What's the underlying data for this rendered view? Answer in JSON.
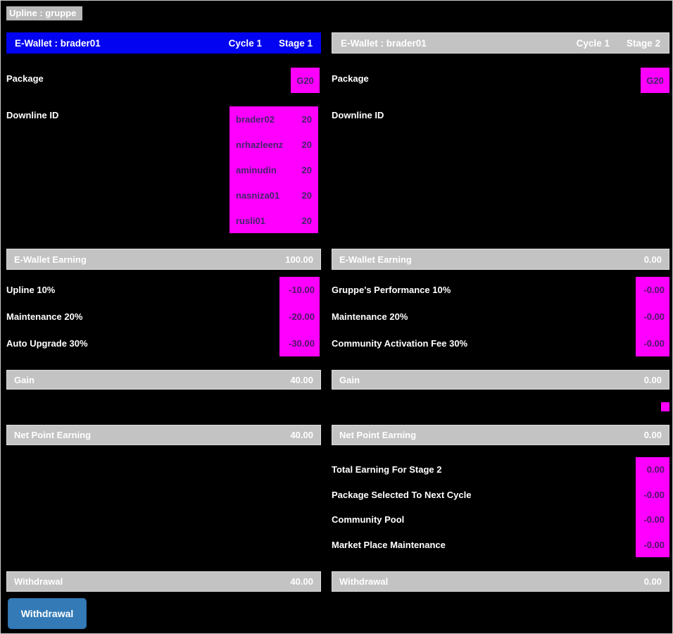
{
  "page": {
    "upline_label": "Upline : gruppe"
  },
  "colors": {
    "background": "#000000",
    "bar_gray": "#c3c3c3",
    "header_blue": "#0203f0",
    "magenta": "#ff00ff",
    "magenta_text": "#44246a",
    "button_blue": "#337ab7",
    "text_white": "#ffffff"
  },
  "left": {
    "header": {
      "title": "E-Wallet : brader01",
      "cycle": "Cycle 1",
      "stage": "Stage 1"
    },
    "package_label": "Package",
    "package_badge": "G20",
    "downline_label": "Downline ID",
    "downline": [
      {
        "name": "brader02",
        "value": "20"
      },
      {
        "name": "nrhazleenz",
        "value": "20"
      },
      {
        "name": "aminudin",
        "value": "20"
      },
      {
        "name": "nasniza01",
        "value": "20"
      },
      {
        "name": "rusli01",
        "value": "20"
      }
    ],
    "ewallet_earning": {
      "label": "E-Wallet Earning",
      "value": "100.00"
    },
    "deductions": [
      {
        "label": "Upline 10%",
        "value": "-10.00"
      },
      {
        "label": "Maintenance 20%",
        "value": "-20.00"
      },
      {
        "label": "Auto Upgrade 30%",
        "value": "-30.00"
      }
    ],
    "gain": {
      "label": "Gain",
      "value": "40.00"
    },
    "net_point": {
      "label": "Net Point Earning",
      "value": "40.00"
    },
    "withdrawal": {
      "label": "Withdrawal",
      "value": "40.00"
    }
  },
  "right": {
    "header": {
      "title": "E-Wallet : brader01",
      "cycle": "Cycle 1",
      "stage": "Stage 2"
    },
    "package_label": "Package",
    "package_badge": "G20",
    "downline_label": "Downline ID",
    "ewallet_earning": {
      "label": "E-Wallet Earning",
      "value": "0.00"
    },
    "deductions": [
      {
        "label": "Gruppe's Performance 10%",
        "value": "-0.00"
      },
      {
        "label": "Maintenance 20%",
        "value": "-0.00"
      },
      {
        "label": "Community Activation Fee 30%",
        "value": "-0.00"
      }
    ],
    "gain": {
      "label": "Gain",
      "value": "0.00"
    },
    "net_point": {
      "label": "Net Point Earning",
      "value": "0.00"
    },
    "summary": [
      {
        "label": "Total Earning For Stage 2",
        "value": "0.00"
      },
      {
        "label": "Package Selected To Next Cycle",
        "value": "-0.00"
      },
      {
        "label": "Community Pool",
        "value": "-0.00"
      },
      {
        "label": "Market Place Maintenance",
        "value": "-0.00"
      }
    ],
    "withdrawal": {
      "label": "Withdrawal",
      "value": "0.00"
    }
  },
  "footer": {
    "withdraw_button": "Withdrawal"
  }
}
